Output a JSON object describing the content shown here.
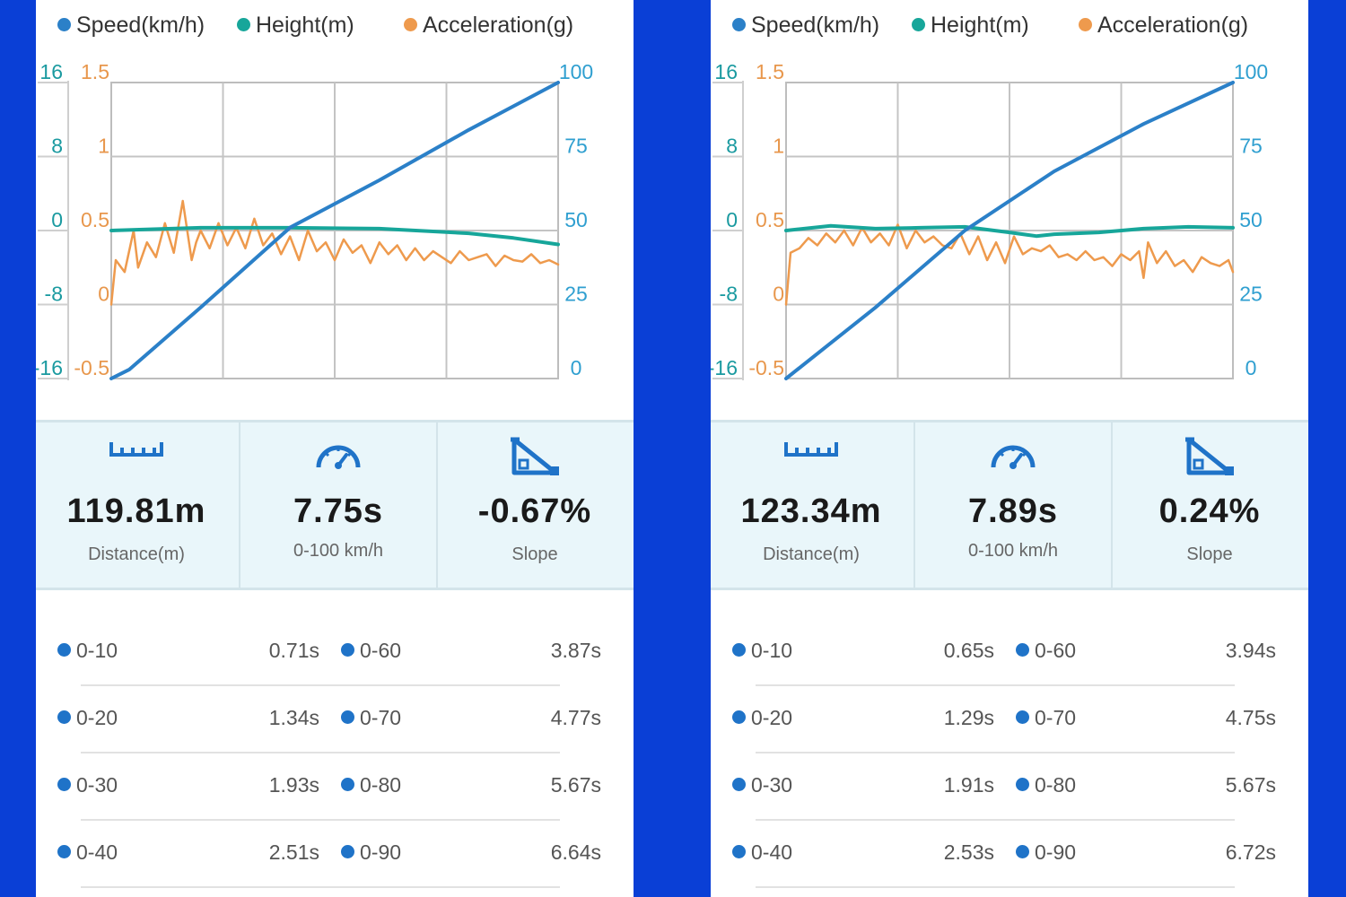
{
  "colors": {
    "speed": "#2b80c8",
    "height": "#17a69a",
    "acceleration": "#ee9a4d",
    "height_axis": "#1a9aa0",
    "speed_axis": "#2f9fd0",
    "accel_axis": "#e8974c",
    "icon": "#1f73c8",
    "background": "#0a3fd6"
  },
  "legend": {
    "speed": "Speed(km/h)",
    "height": "Height(m)",
    "acceleration": "Acceleration(g)"
  },
  "runs": [
    {
      "summary": {
        "distance": {
          "value": "119.81m",
          "label": "Distance(m)",
          "icon": "ruler-icon"
        },
        "time": {
          "value": "7.75s",
          "label": "0-100 km/h",
          "icon": "speedometer-icon"
        },
        "slope": {
          "value": "-0.67%",
          "label": "Slope",
          "icon": "slope-icon"
        }
      },
      "times": [
        {
          "left_label": "0-10",
          "left_value": "0.71s",
          "right_label": "0-60",
          "right_value": "3.87s"
        },
        {
          "left_label": "0-20",
          "left_value": "1.34s",
          "right_label": "0-70",
          "right_value": "4.77s"
        },
        {
          "left_label": "0-30",
          "left_value": "1.93s",
          "right_label": "0-80",
          "right_value": "5.67s"
        },
        {
          "left_label": "0-40",
          "left_value": "2.51s",
          "right_label": "0-90",
          "right_value": "6.64s"
        }
      ],
      "chart_data": {
        "type": "line",
        "title": "",
        "grid": true,
        "legend_position": "top",
        "axes": {
          "height": {
            "side": "left-outer",
            "ticks": [
              "16",
              "8",
              "0",
              "-8",
              "-16"
            ],
            "range": [
              -16,
              16
            ]
          },
          "acceleration": {
            "side": "left-inner",
            "ticks": [
              "1.5",
              "1",
              "0.5",
              "0",
              "-0.5"
            ],
            "range": [
              -0.5,
              1.5
            ]
          },
          "speed": {
            "side": "right",
            "ticks": [
              "100",
              "75",
              "50",
              "25",
              "0"
            ],
            "range": [
              0,
              100
            ]
          }
        },
        "x_range": [
          0,
          1
        ],
        "series": [
          {
            "name": "Speed(km/h)",
            "axis": "speed",
            "x": [
              0,
              0.04,
              0.2,
              0.4,
              0.6,
              0.8,
              1.0
            ],
            "y": [
              0,
              3,
              24,
              51,
              67,
              84,
              100
            ]
          },
          {
            "name": "Height(m)",
            "axis": "height",
            "x": [
              0,
              0.2,
              0.4,
              0.6,
              0.8,
              0.9,
              1.0
            ],
            "y": [
              0,
              0.3,
              0.3,
              0.2,
              -0.3,
              -0.8,
              -1.5
            ]
          },
          {
            "name": "Acceleration(g)",
            "axis": "acceleration",
            "x": [
              0,
              0.01,
              0.03,
              0.05,
              0.06,
              0.08,
              0.1,
              0.12,
              0.14,
              0.16,
              0.18,
              0.19,
              0.2,
              0.22,
              0.24,
              0.26,
              0.28,
              0.3,
              0.32,
              0.34,
              0.36,
              0.38,
              0.4,
              0.42,
              0.44,
              0.46,
              0.48,
              0.5,
              0.52,
              0.54,
              0.56,
              0.58,
              0.6,
              0.62,
              0.64,
              0.66,
              0.68,
              0.7,
              0.72,
              0.74,
              0.76,
              0.78,
              0.8,
              0.82,
              0.84,
              0.86,
              0.88,
              0.9,
              0.92,
              0.94,
              0.96,
              0.98,
              1.0
            ],
            "y": [
              0.0,
              0.3,
              0.22,
              0.5,
              0.25,
              0.42,
              0.32,
              0.55,
              0.35,
              0.7,
              0.3,
              0.42,
              0.5,
              0.38,
              0.55,
              0.4,
              0.52,
              0.38,
              0.58,
              0.4,
              0.48,
              0.34,
              0.46,
              0.3,
              0.5,
              0.36,
              0.42,
              0.3,
              0.44,
              0.35,
              0.4,
              0.28,
              0.42,
              0.34,
              0.4,
              0.3,
              0.38,
              0.3,
              0.36,
              0.32,
              0.28,
              0.36,
              0.3,
              0.32,
              0.34,
              0.26,
              0.33,
              0.3,
              0.29,
              0.34,
              0.28,
              0.3,
              0.27
            ]
          }
        ]
      }
    },
    {
      "summary": {
        "distance": {
          "value": "123.34m",
          "label": "Distance(m)",
          "icon": "ruler-icon"
        },
        "time": {
          "value": "7.89s",
          "label": "0-100 km/h",
          "icon": "speedometer-icon"
        },
        "slope": {
          "value": "0.24%",
          "label": "Slope",
          "icon": "slope-icon"
        }
      },
      "times": [
        {
          "left_label": "0-10",
          "left_value": "0.65s",
          "right_label": "0-60",
          "right_value": "3.94s"
        },
        {
          "left_label": "0-20",
          "left_value": "1.29s",
          "right_label": "0-70",
          "right_value": "4.75s"
        },
        {
          "left_label": "0-30",
          "left_value": "1.91s",
          "right_label": "0-80",
          "right_value": "5.67s"
        },
        {
          "left_label": "0-40",
          "left_value": "2.53s",
          "right_label": "0-90",
          "right_value": "6.72s"
        }
      ],
      "chart_data": {
        "type": "line",
        "title": "",
        "grid": true,
        "legend_position": "top",
        "axes": {
          "height": {
            "side": "left-outer",
            "ticks": [
              "16",
              "8",
              "0",
              "-8",
              "-16"
            ],
            "range": [
              -16,
              16
            ]
          },
          "acceleration": {
            "side": "left-inner",
            "ticks": [
              "1.5",
              "1",
              "0.5",
              "0",
              "-0.5"
            ],
            "range": [
              -0.5,
              1.5
            ]
          },
          "speed": {
            "side": "right",
            "ticks": [
              "100",
              "75",
              "50",
              "25",
              "0"
            ],
            "range": [
              0,
              100
            ]
          }
        },
        "x_range": [
          0,
          1
        ],
        "series": [
          {
            "name": "Speed(km/h)",
            "axis": "speed",
            "x": [
              0,
              0.2,
              0.4,
              0.6,
              0.8,
              1.0
            ],
            "y": [
              0,
              24,
              50,
              70,
              86,
              100
            ]
          },
          {
            "name": "Height(m)",
            "axis": "height",
            "x": [
              0,
              0.1,
              0.2,
              0.3,
              0.4,
              0.5,
              0.56,
              0.6,
              0.7,
              0.8,
              0.9,
              1.0
            ],
            "y": [
              0,
              0.5,
              0.2,
              0.3,
              0.4,
              -0.2,
              -0.6,
              -0.4,
              -0.2,
              0.2,
              0.4,
              0.3
            ]
          },
          {
            "name": "Acceleration(g)",
            "axis": "acceleration",
            "x": [
              0,
              0.01,
              0.03,
              0.05,
              0.07,
              0.09,
              0.11,
              0.13,
              0.15,
              0.17,
              0.19,
              0.21,
              0.23,
              0.25,
              0.27,
              0.29,
              0.31,
              0.33,
              0.35,
              0.37,
              0.39,
              0.41,
              0.43,
              0.45,
              0.47,
              0.49,
              0.51,
              0.53,
              0.55,
              0.57,
              0.59,
              0.61,
              0.63,
              0.65,
              0.67,
              0.69,
              0.71,
              0.73,
              0.75,
              0.77,
              0.79,
              0.8,
              0.81,
              0.83,
              0.85,
              0.87,
              0.89,
              0.91,
              0.93,
              0.95,
              0.97,
              0.99,
              1.0
            ],
            "y": [
              0.0,
              0.35,
              0.38,
              0.45,
              0.4,
              0.48,
              0.42,
              0.5,
              0.4,
              0.52,
              0.42,
              0.48,
              0.4,
              0.54,
              0.38,
              0.5,
              0.42,
              0.46,
              0.4,
              0.38,
              0.48,
              0.34,
              0.46,
              0.3,
              0.42,
              0.28,
              0.46,
              0.34,
              0.38,
              0.36,
              0.4,
              0.32,
              0.34,
              0.3,
              0.36,
              0.3,
              0.32,
              0.26,
              0.34,
              0.3,
              0.36,
              0.18,
              0.42,
              0.28,
              0.36,
              0.26,
              0.3,
              0.22,
              0.32,
              0.28,
              0.26,
              0.3,
              0.22
            ]
          }
        ]
      }
    }
  ]
}
